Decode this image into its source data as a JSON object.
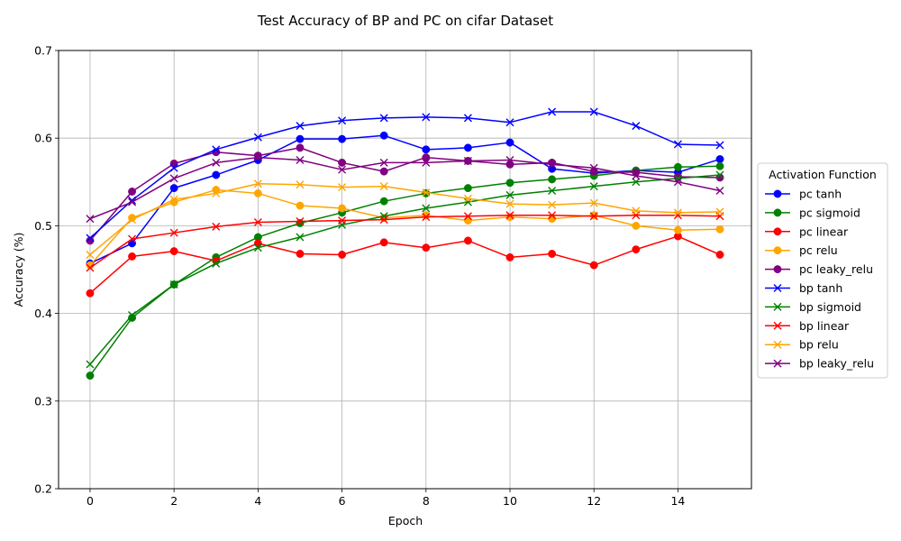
{
  "chart_data": {
    "type": "line",
    "title": "Test Accuracy of BP and PC on cifar Dataset",
    "xlabel": "Epoch",
    "ylabel": "Accuracy (%)",
    "xlim": [
      -0.75,
      15.75
    ],
    "ylim": [
      0.2,
      0.7
    ],
    "xticks": [
      0,
      2,
      4,
      6,
      8,
      10,
      12,
      14
    ],
    "yticks": [
      0.2,
      0.3,
      0.4,
      0.5,
      0.6,
      0.7
    ],
    "xtick_labels": [
      "0",
      "2",
      "4",
      "6",
      "8",
      "10",
      "12",
      "14"
    ],
    "ytick_labels": [
      "0.2",
      "0.3",
      "0.4",
      "0.5",
      "0.6",
      "0.7"
    ],
    "grid": true,
    "legend": {
      "title": "Activation Function",
      "placement": "outside-right"
    },
    "x": [
      0,
      1,
      2,
      3,
      4,
      5,
      6,
      7,
      8,
      9,
      10,
      11,
      12,
      13,
      14,
      15
    ],
    "series": [
      {
        "name": "pc tanh",
        "color": "#0000ff",
        "marker": "circle",
        "values": [
          0.457,
          0.48,
          0.543,
          0.558,
          0.575,
          0.599,
          0.599,
          0.603,
          0.587,
          0.589,
          0.595,
          0.565,
          0.56,
          0.563,
          0.561,
          0.576
        ]
      },
      {
        "name": "pc sigmoid",
        "color": "#008000",
        "marker": "circle",
        "values": [
          0.329,
          0.395,
          0.433,
          0.464,
          0.487,
          0.503,
          0.515,
          0.528,
          0.537,
          0.543,
          0.549,
          0.553,
          0.557,
          0.563,
          0.567,
          0.568
        ]
      },
      {
        "name": "pc linear",
        "color": "#ff0000",
        "marker": "circle",
        "values": [
          0.423,
          0.465,
          0.471,
          0.46,
          0.48,
          0.468,
          0.467,
          0.481,
          0.475,
          0.483,
          0.464,
          0.468,
          0.455,
          0.473,
          0.488,
          0.467
        ]
      },
      {
        "name": "pc relu",
        "color": "#ffa500",
        "marker": "circle",
        "values": [
          0.455,
          0.509,
          0.527,
          0.541,
          0.537,
          0.523,
          0.52,
          0.509,
          0.512,
          0.506,
          0.51,
          0.508,
          0.512,
          0.5,
          0.495,
          0.496
        ]
      },
      {
        "name": "pc leaky_relu",
        "color": "#800080",
        "marker": "circle",
        "values": [
          0.483,
          0.539,
          0.571,
          0.584,
          0.58,
          0.589,
          0.572,
          0.562,
          0.578,
          0.574,
          0.57,
          0.572,
          0.562,
          0.561,
          0.556,
          0.555
        ]
      },
      {
        "name": "bp tanh",
        "color": "#0000ff",
        "marker": "x",
        "values": [
          0.486,
          0.529,
          0.566,
          0.587,
          0.601,
          0.614,
          0.62,
          0.623,
          0.624,
          0.623,
          0.618,
          0.63,
          0.63,
          0.614,
          0.593,
          0.592
        ]
      },
      {
        "name": "bp sigmoid",
        "color": "#008000",
        "marker": "x",
        "values": [
          0.342,
          0.398,
          0.433,
          0.457,
          0.475,
          0.487,
          0.501,
          0.511,
          0.52,
          0.527,
          0.535,
          0.54,
          0.545,
          0.55,
          0.554,
          0.558
        ]
      },
      {
        "name": "bp linear",
        "color": "#ff0000",
        "marker": "x",
        "values": [
          0.452,
          0.485,
          0.492,
          0.499,
          0.504,
          0.505,
          0.506,
          0.507,
          0.51,
          0.511,
          0.512,
          0.512,
          0.511,
          0.512,
          0.512,
          0.511
        ]
      },
      {
        "name": "bp relu",
        "color": "#ffa500",
        "marker": "x",
        "values": [
          0.467,
          0.507,
          0.53,
          0.537,
          0.548,
          0.547,
          0.544,
          0.545,
          0.538,
          0.531,
          0.525,
          0.524,
          0.526,
          0.517,
          0.515,
          0.516
        ]
      },
      {
        "name": "bp leaky_relu",
        "color": "#800080",
        "marker": "x",
        "values": [
          0.508,
          0.527,
          0.554,
          0.572,
          0.578,
          0.575,
          0.564,
          0.572,
          0.572,
          0.574,
          0.575,
          0.57,
          0.566,
          0.557,
          0.55,
          0.54
        ]
      }
    ]
  }
}
